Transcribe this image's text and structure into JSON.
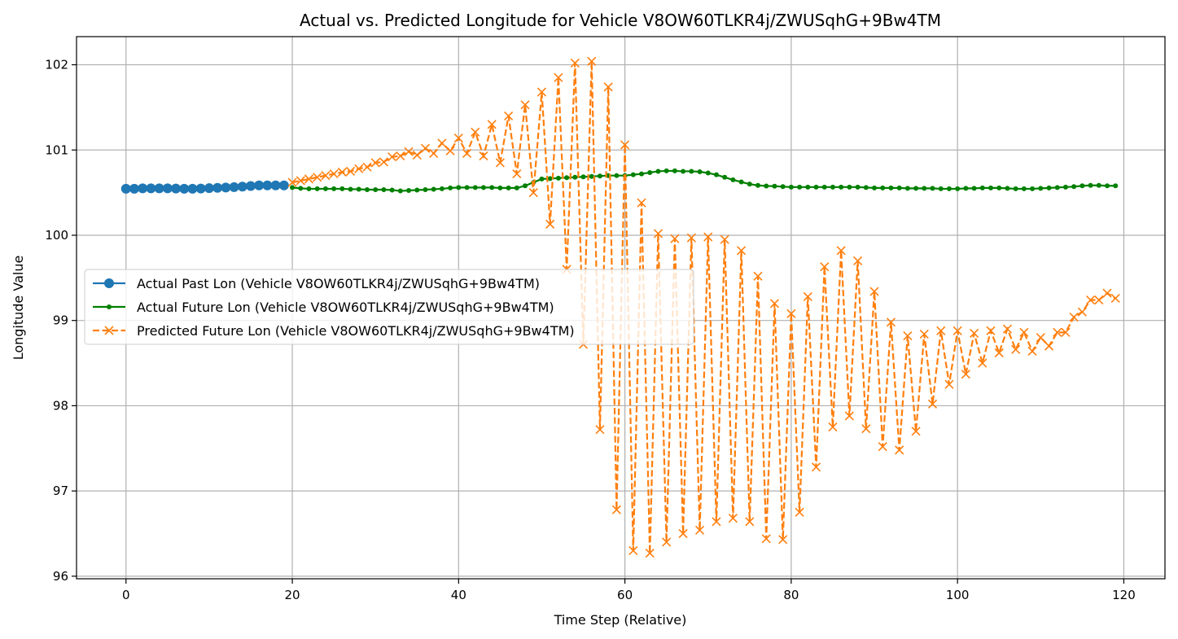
{
  "chart_data": {
    "type": "line",
    "title": "Actual vs. Predicted Longitude for Vehicle V8OW60TLKR4j/ZWUSqhG+9Bw4TM",
    "xlabel": "Time Step (Relative)",
    "ylabel": "Longitude Value",
    "xlim": [
      -5.95,
      124.95
    ],
    "ylim": [
      95.97,
      102.33
    ],
    "xticks": [
      0,
      20,
      40,
      60,
      80,
      100,
      120
    ],
    "yticks": [
      96,
      97,
      98,
      99,
      100,
      101,
      102
    ],
    "grid": true,
    "legend_position": "center-left",
    "series": [
      {
        "name": "Actual Past Lon (Vehicle V8OW60TLKR4j/ZWUSqhG+9Bw4TM)",
        "color": "#1f77b4",
        "marker": "circle",
        "linestyle": "solid",
        "x_start": 0,
        "values": [
          100.545,
          100.545,
          100.55,
          100.55,
          100.55,
          100.55,
          100.548,
          100.545,
          100.545,
          100.548,
          100.552,
          100.556,
          100.56,
          100.565,
          100.57,
          100.578,
          100.585,
          100.585,
          100.585,
          100.585
        ]
      },
      {
        "name": "Actual Future Lon (Vehicle V8OW60TLKR4j/ZWUSqhG+9Bw4TM)",
        "color": "#008000",
        "marker": "small-circle",
        "linestyle": "solid",
        "x_start": 20,
        "values": [
          100.56,
          100.55,
          100.545,
          100.545,
          100.545,
          100.545,
          100.545,
          100.54,
          100.54,
          100.535,
          100.535,
          100.535,
          100.53,
          100.52,
          100.525,
          100.53,
          100.535,
          100.54,
          100.545,
          100.555,
          100.56,
          100.56,
          100.56,
          100.56,
          100.56,
          100.555,
          100.555,
          100.555,
          100.58,
          100.62,
          100.66,
          100.665,
          100.67,
          100.675,
          100.68,
          100.685,
          100.69,
          100.695,
          100.7,
          100.7,
          100.7,
          100.71,
          100.72,
          100.735,
          100.75,
          100.755,
          100.755,
          100.75,
          100.75,
          100.745,
          100.73,
          100.71,
          100.68,
          100.65,
          100.625,
          100.6,
          100.585,
          100.578,
          100.575,
          100.57,
          100.565,
          100.565,
          100.565,
          100.565,
          100.565,
          100.565,
          100.565,
          100.565,
          100.565,
          100.56,
          100.555,
          100.555,
          100.555,
          100.555,
          100.55,
          100.55,
          100.55,
          100.55,
          100.545,
          100.545,
          100.545,
          100.55,
          100.55,
          100.555,
          100.555,
          100.555,
          100.55,
          100.545,
          100.545,
          100.545,
          100.55,
          100.555,
          100.56,
          100.565,
          100.57,
          100.58,
          100.585,
          100.585,
          100.58,
          100.58
        ]
      },
      {
        "name": "Predicted Future Lon (Vehicle V8OW60TLKR4j/ZWUSqhG+9Bw4TM)",
        "color": "#ff7f0e",
        "marker": "x",
        "linestyle": "dashed",
        "x_start": 20,
        "values": [
          100.62,
          100.64,
          100.66,
          100.68,
          100.7,
          100.72,
          100.74,
          100.75,
          100.78,
          100.8,
          100.85,
          100.86,
          100.92,
          100.93,
          100.98,
          100.94,
          101.02,
          100.96,
          101.08,
          100.99,
          101.14,
          100.96,
          101.21,
          100.93,
          101.3,
          100.85,
          101.4,
          100.72,
          101.53,
          100.5,
          101.68,
          100.13,
          101.85,
          99.6,
          102.02,
          98.72,
          102.04,
          97.72,
          101.74,
          96.78,
          101.06,
          96.3,
          100.38,
          96.27,
          100.02,
          96.4,
          99.96,
          96.5,
          99.97,
          96.54,
          99.98,
          96.64,
          99.95,
          96.68,
          99.82,
          96.64,
          99.52,
          96.44,
          99.2,
          96.43,
          99.08,
          96.75,
          99.28,
          97.28,
          99.63,
          97.75,
          99.82,
          97.88,
          99.7,
          97.73,
          99.34,
          97.52,
          98.98,
          97.48,
          98.82,
          97.7,
          98.84,
          98.02,
          98.88,
          98.25,
          98.88,
          98.37,
          98.85,
          98.5,
          98.88,
          98.62,
          98.9,
          98.66,
          98.86,
          98.64,
          98.8,
          98.7,
          98.86,
          98.86,
          99.04,
          99.1,
          99.24,
          99.24,
          99.32,
          99.26
        ]
      }
    ]
  }
}
